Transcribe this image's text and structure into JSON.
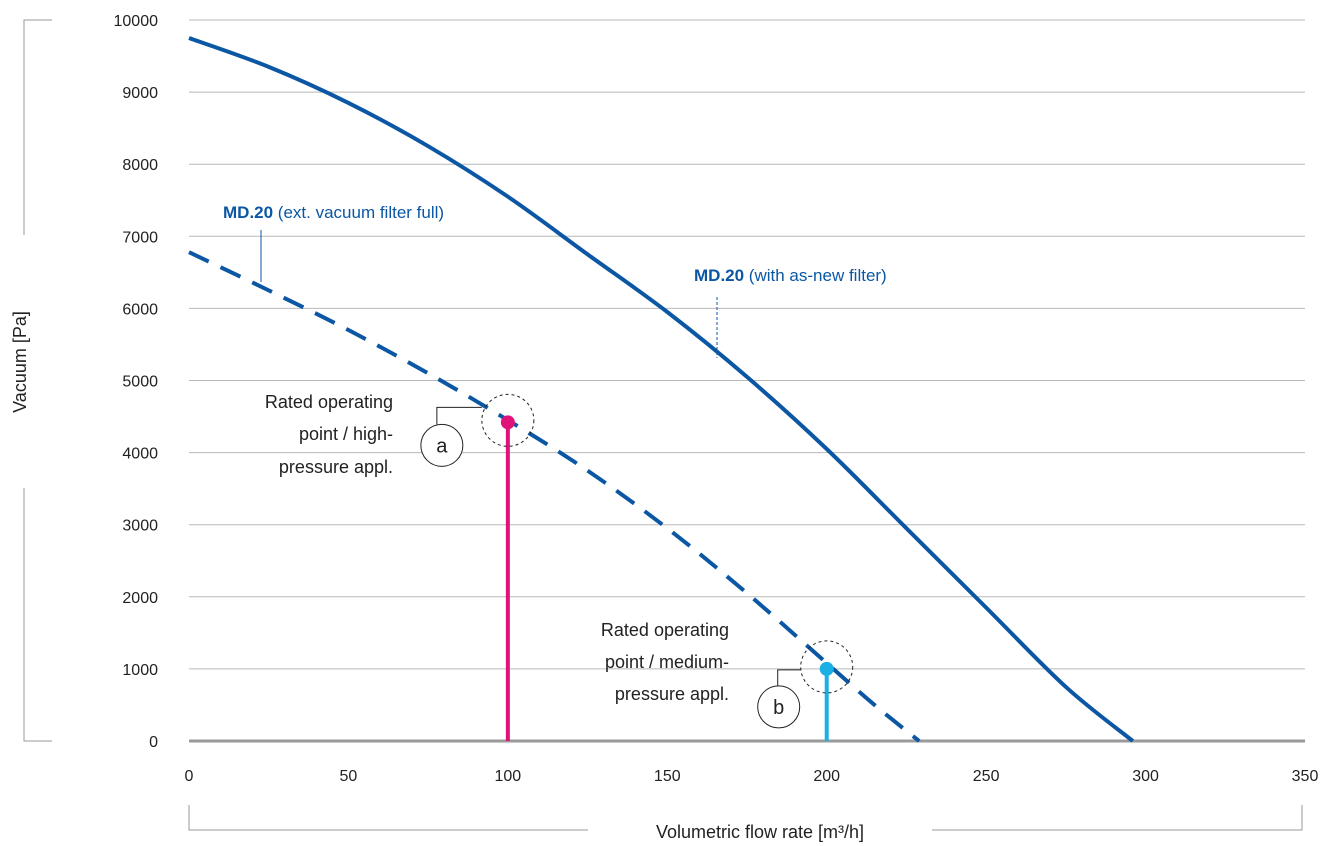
{
  "chart_data": {
    "type": "line",
    "xlabel": "Volumetric flow rate [m³/h]",
    "ylabel": "Vacuum [Pa]",
    "xlim": [
      0,
      350
    ],
    "ylim": [
      0,
      10000
    ],
    "x_ticks": [
      "0",
      "50",
      "100",
      "150",
      "200",
      "250",
      "300",
      "350"
    ],
    "y_ticks": [
      "0",
      "1000",
      "2000",
      "3000",
      "4000",
      "5000",
      "6000",
      "7000",
      "8000",
      "9000",
      "10000"
    ],
    "grid": "horizontal",
    "series": [
      {
        "label_bold": "MD.20",
        "label_rest": " (with as-new filter)",
        "style": "solid",
        "color": "#0b57a4",
        "x": [
          0,
          25,
          50,
          75,
          100,
          125,
          150,
          175,
          200,
          225,
          250,
          275,
          296
        ],
        "y": [
          9750,
          9350,
          8850,
          8250,
          7550,
          6750,
          5950,
          5050,
          4050,
          2950,
          1850,
          750,
          0
        ]
      },
      {
        "label_bold": "MD.20",
        "label_rest": " (ext. vacuum filter full)",
        "style": "dashed",
        "color": "#0b57a4",
        "x": [
          0,
          25,
          50,
          75,
          100,
          125,
          150,
          175,
          200,
          215,
          229
        ],
        "y": [
          6780,
          6250,
          5700,
          5100,
          4450,
          3750,
          2950,
          2050,
          1080,
          500,
          0
        ]
      }
    ],
    "operating_points": [
      {
        "letter": "a",
        "x": 100,
        "y": 4420,
        "color": "#e0127a",
        "label_lines": [
          "Rated operating",
          "point / high-",
          "pressure appl."
        ]
      },
      {
        "letter": "b",
        "x": 200,
        "y": 1000,
        "color": "#1ab0e3",
        "label_lines": [
          "Rated operating",
          "point / medium-",
          "pressure appl."
        ]
      }
    ]
  }
}
